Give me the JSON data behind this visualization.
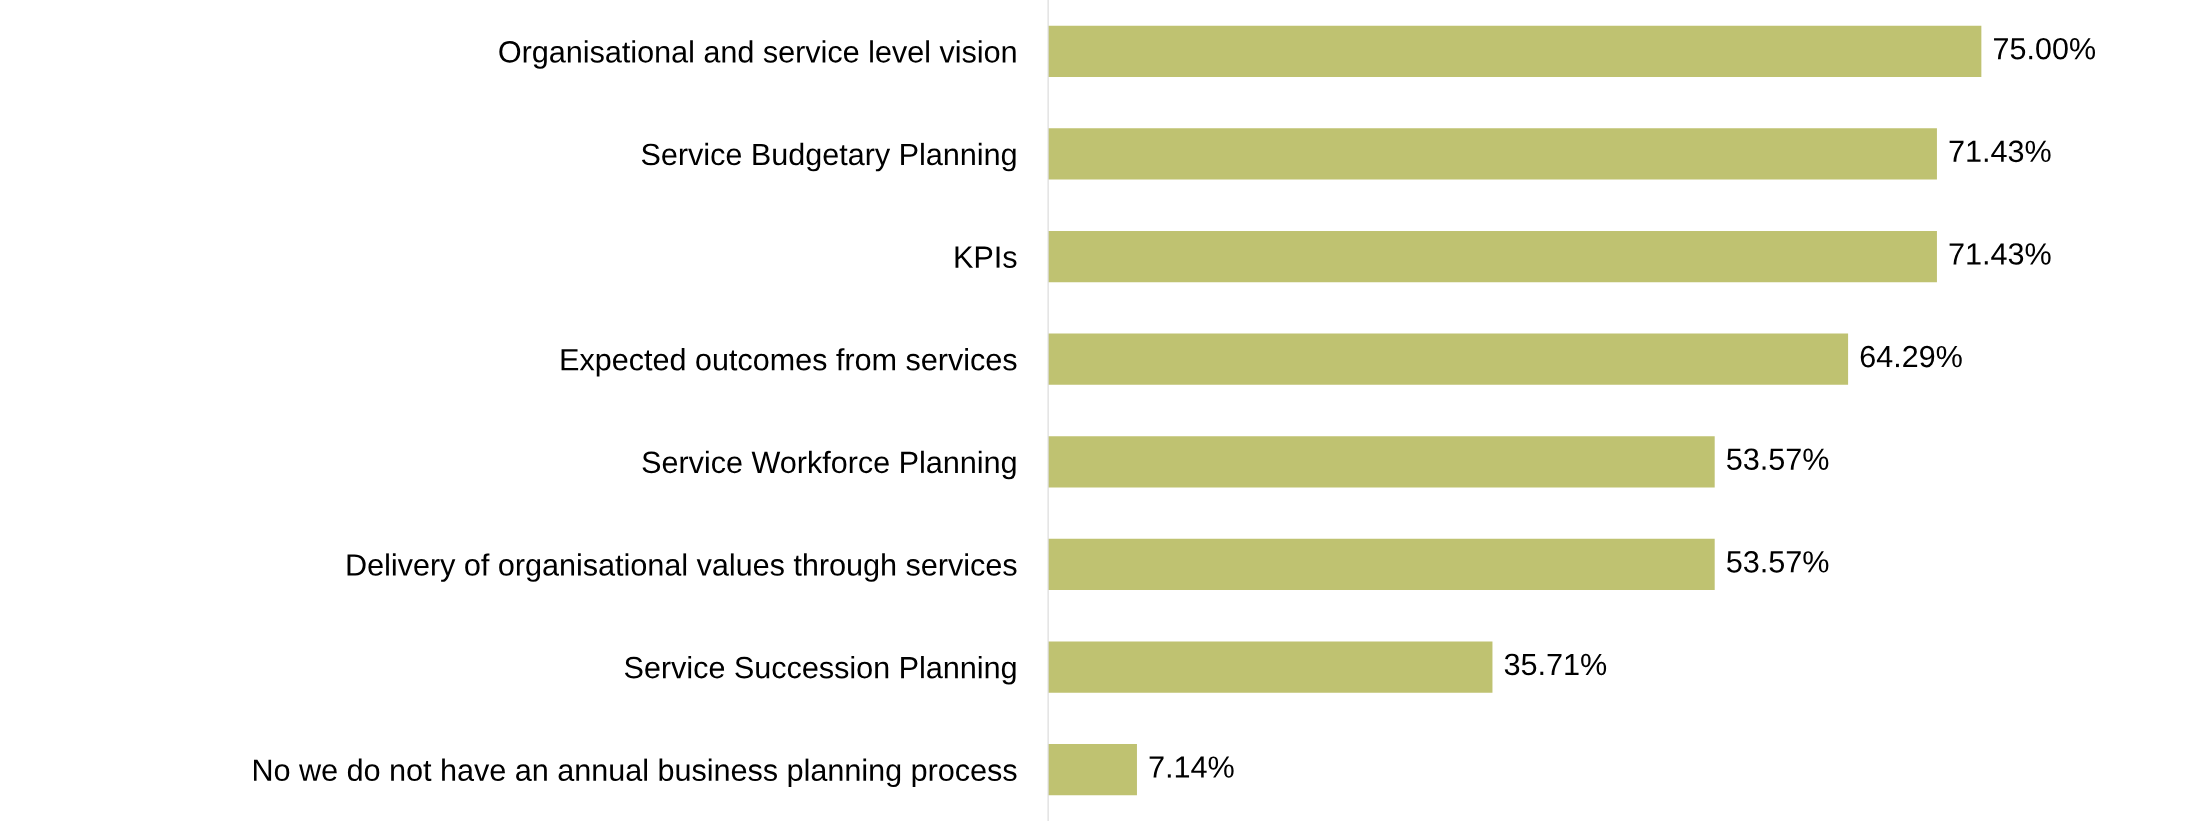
{
  "chart_data": {
    "type": "bar",
    "orientation": "horizontal",
    "categories": [
      "Organisational and service level vision",
      "Service Budgetary Planning",
      "KPIs",
      "Expected outcomes from services",
      "Service Workforce Planning",
      "Delivery of organisational values through services",
      "Service Succession Planning",
      "No we do not have an annual business planning process"
    ],
    "values": [
      75.0,
      71.43,
      71.43,
      64.29,
      53.57,
      53.57,
      35.71,
      7.14
    ],
    "value_labels": [
      "75.00%",
      "71.43%",
      "71.43%",
      "64.29%",
      "53.57%",
      "53.57%",
      "35.71%",
      "7.14%"
    ],
    "color": "#bfc271",
    "grid": false,
    "legend": false
  }
}
